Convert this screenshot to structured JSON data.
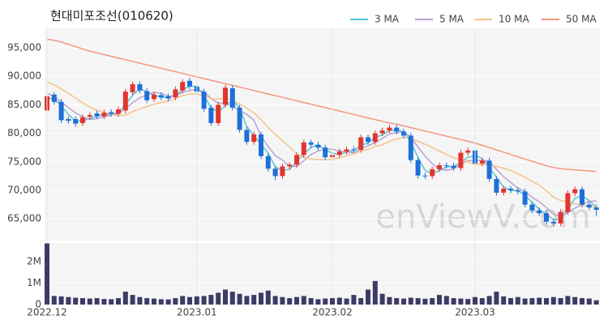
{
  "chart_data": [
    {
      "type": "candlestick",
      "title": "현대미포조선(010620)",
      "watermark": "enViewV.com",
      "up_color": "#e3342f",
      "down_color": "#1e6fd9",
      "legend": "top-right",
      "grid": true,
      "ylim": [
        61200,
        98400
      ],
      "yticks": [
        {
          "value": 65000,
          "label": "65,000"
        },
        {
          "value": 70000,
          "label": "70,000"
        },
        {
          "value": 75000,
          "label": "75,000"
        },
        {
          "value": 80000,
          "label": "80,000"
        },
        {
          "value": 85000,
          "label": "85,000"
        },
        {
          "value": 90000,
          "label": "90,000"
        },
        {
          "value": 95000,
          "label": "95,000"
        }
      ],
      "open": [
        84000,
        86800,
        85500,
        82500,
        82500,
        81800,
        82900,
        83500,
        83000,
        83700,
        83400,
        84000,
        87200,
        88600,
        87400,
        86000,
        86700,
        86500,
        86300,
        87500,
        89200,
        88200,
        87300,
        84500,
        81800,
        85000,
        87900,
        84500,
        80600,
        78500,
        79800,
        76000,
        73800,
        72500,
        74200,
        74500,
        76200,
        78400,
        78000,
        77500,
        75800,
        76200,
        76800,
        77200,
        77100,
        79300,
        78500,
        80000,
        80500,
        81000,
        80300,
        79600,
        75300,
        72600,
        72500,
        73700,
        74400,
        74300,
        73900,
        76600,
        77000,
        74700,
        75200,
        72000,
        69600,
        70300,
        70000,
        69800,
        67500,
        66500,
        66000,
        64500,
        64200,
        66200,
        69500,
        70200,
        67500,
        67000
      ],
      "high": [
        87000,
        87300,
        86000,
        83000,
        83000,
        83300,
        83700,
        84000,
        84100,
        84200,
        84700,
        87800,
        89100,
        89100,
        87900,
        87300,
        87200,
        87000,
        88200,
        89500,
        89700,
        88700,
        87800,
        85000,
        85500,
        88500,
        88400,
        85000,
        81100,
        80300,
        80300,
        76500,
        74300,
        74700,
        75000,
        76700,
        78900,
        78900,
        78500,
        78000,
        76700,
        77300,
        77700,
        77700,
        79800,
        79800,
        80500,
        81000,
        81500,
        81500,
        80800,
        80100,
        75800,
        73100,
        74200,
        74900,
        74900,
        74800,
        77100,
        77500,
        77500,
        75700,
        75700,
        72500,
        70800,
        70800,
        70500,
        70300,
        68000,
        67000,
        66500,
        65000,
        66700,
        70000,
        70700,
        70700,
        68000,
        67500
      ],
      "low": [
        83500,
        85000,
        81800,
        81700,
        81200,
        81300,
        82400,
        82500,
        82500,
        82900,
        82900,
        83500,
        86700,
        87000,
        85300,
        85500,
        85800,
        85600,
        85800,
        87000,
        87700,
        86800,
        83800,
        81300,
        81300,
        84500,
        84000,
        80100,
        78000,
        78000,
        75500,
        73300,
        71800,
        72000,
        73700,
        74000,
        75700,
        77500,
        77000,
        75300,
        75300,
        75700,
        76300,
        76600,
        76600,
        78000,
        78000,
        79500,
        80000,
        79800,
        79100,
        74800,
        72100,
        72000,
        72000,
        73200,
        73800,
        73400,
        73400,
        76100,
        74200,
        74200,
        71500,
        69100,
        69100,
        69500,
        69300,
        67000,
        66000,
        65500,
        64000,
        63700,
        63700,
        65700,
        69000,
        67000,
        66500,
        65500
      ],
      "close": [
        86500,
        85500,
        82300,
        82200,
        81700,
        82800,
        83200,
        83000,
        83600,
        83400,
        84200,
        87300,
        88600,
        87500,
        85800,
        86800,
        86300,
        86100,
        87700,
        89000,
        88200,
        87300,
        84300,
        81800,
        85000,
        88000,
        84500,
        80600,
        78500,
        79800,
        76000,
        73800,
        72500,
        74200,
        74500,
        76200,
        78400,
        78000,
        77500,
        75800,
        76200,
        76800,
        77200,
        77100,
        79300,
        78500,
        80000,
        80500,
        81000,
        80300,
        79600,
        75300,
        72600,
        72500,
        73700,
        74400,
        74300,
        73900,
        76600,
        77000,
        74700,
        75200,
        72000,
        69600,
        70300,
        70000,
        69800,
        67500,
        66500,
        66000,
        64500,
        64200,
        66200,
        69500,
        70200,
        67500,
        67000,
        66600
      ],
      "series": [
        {
          "name": "3 MA",
          "color": "#52c7d4",
          "values": [
            86000,
            86200,
            84800,
            83300,
            82100,
            82200,
            82600,
            83000,
            83300,
            83300,
            83700,
            85000,
            86700,
            87800,
            87300,
            86700,
            86300,
            86400,
            86700,
            87600,
            88300,
            88200,
            86600,
            84500,
            83700,
            84900,
            85800,
            84400,
            81200,
            79600,
            78100,
            76500,
            74100,
            73500,
            73700,
            75000,
            76400,
            77500,
            78000,
            77100,
            76500,
            76300,
            76700,
            77000,
            77900,
            78300,
            79300,
            79700,
            80500,
            80600,
            80300,
            78400,
            75800,
            73500,
            72900,
            73500,
            74100,
            74200,
            74900,
            75800,
            76100,
            75600,
            74000,
            72300,
            70600,
            70000,
            70000,
            69100,
            67900,
            66700,
            65700,
            64900,
            65000,
            66600,
            68600,
            69100,
            68200,
            67000
          ]
        },
        {
          "name": "5 MA",
          "color": "#b7a1d2",
          "values": [
            87000,
            86500,
            85500,
            84500,
            83600,
            82900,
            82400,
            82600,
            82900,
            83200,
            83500,
            84300,
            85400,
            86200,
            86700,
            87200,
            87000,
            86500,
            86500,
            87200,
            87500,
            87700,
            87300,
            86100,
            85300,
            85300,
            84700,
            84000,
            83300,
            82300,
            79500,
            77700,
            76100,
            75300,
            74200,
            74200,
            75200,
            76300,
            76900,
            77200,
            77200,
            76900,
            76700,
            76600,
            77300,
            77800,
            78400,
            79100,
            79900,
            80100,
            80300,
            79300,
            77600,
            76000,
            74700,
            73700,
            73500,
            73800,
            74600,
            75200,
            75200,
            75300,
            75100,
            73700,
            72400,
            71400,
            70400,
            69800,
            68800,
            68000,
            67000,
            65800,
            65500,
            66100,
            66900,
            67500,
            68100,
            68100
          ]
        },
        {
          "name": "10 MA",
          "color": "#f3c38b",
          "values": [
            89000,
            88500,
            87800,
            87000,
            86200,
            85300,
            84600,
            84000,
            83700,
            83300,
            83100,
            83200,
            83800,
            84300,
            84700,
            85100,
            85400,
            85700,
            86100,
            86600,
            86900,
            86900,
            86600,
            86100,
            86000,
            86200,
            85800,
            85200,
            84400,
            83600,
            82400,
            81000,
            79800,
            78700,
            77600,
            76400,
            75800,
            75500,
            75400,
            75400,
            75400,
            75700,
            76100,
            76400,
            76900,
            77200,
            77700,
            78000,
            78600,
            79000,
            79300,
            79100,
            78600,
            78100,
            77500,
            76900,
            76300,
            75700,
            75300,
            75000,
            74500,
            74500,
            74500,
            74200,
            73900,
            73500,
            72900,
            72300,
            71600,
            70900,
            69900,
            68800,
            68200,
            68000,
            67600,
            67400,
            67100,
            67100
          ]
        },
        {
          "name": "50 MA",
          "color": "#f4977f",
          "values": [
            96500,
            96300,
            96000,
            95600,
            95200,
            94800,
            94400,
            94100,
            93800,
            93500,
            93200,
            92900,
            92600,
            92300,
            92000,
            91700,
            91400,
            91100,
            90800,
            90500,
            90200,
            89900,
            89600,
            89300,
            89000,
            88700,
            88400,
            88100,
            87800,
            87500,
            87200,
            86900,
            86600,
            86300,
            86000,
            85700,
            85400,
            85100,
            84800,
            84500,
            84200,
            83900,
            83600,
            83300,
            83000,
            82700,
            82400,
            82100,
            81800,
            81600,
            81300,
            81000,
            80700,
            80400,
            80100,
            79800,
            79500,
            79200,
            78900,
            78600,
            78300,
            77900,
            77500,
            77100,
            76700,
            76300,
            75900,
            75500,
            75100,
            74700,
            74300,
            74000,
            73800,
            73700,
            73600,
            73500,
            73400,
            73300
          ]
        }
      ]
    },
    {
      "type": "bar",
      "color": "#3d3b66",
      "ylim": [
        0,
        2870000
      ],
      "yticks": [
        0,
        {
          "value": 1000000,
          "label": "1M"
        },
        {
          "value": 2000000,
          "label": "2M"
        }
      ],
      "categories": [
        "2022.12",
        null,
        null,
        null,
        null,
        null,
        null,
        null,
        null,
        null,
        null,
        null,
        null,
        null,
        null,
        null,
        null,
        null,
        null,
        null,
        null,
        "2023.01",
        null,
        null,
        null,
        null,
        null,
        null,
        null,
        null,
        null,
        null,
        null,
        null,
        null,
        null,
        null,
        null,
        null,
        null,
        "2023.02",
        null,
        null,
        null,
        null,
        null,
        null,
        null,
        null,
        null,
        null,
        null,
        null,
        null,
        null,
        null,
        null,
        null,
        null,
        null,
        "2023.03",
        null,
        null,
        null,
        null,
        null,
        null,
        null,
        null,
        null,
        null,
        null,
        null,
        null,
        null,
        null,
        null,
        null
      ],
      "values": [
        2850000,
        400000,
        380000,
        350000,
        320000,
        300000,
        280000,
        300000,
        260000,
        250000,
        300000,
        600000,
        450000,
        350000,
        300000,
        280000,
        250000,
        240000,
        300000,
        400000,
        350000,
        380000,
        400000,
        450000,
        550000,
        700000,
        600000,
        500000,
        400000,
        450000,
        550000,
        650000,
        400000,
        350000,
        300000,
        350000,
        400000,
        300000,
        250000,
        280000,
        300000,
        320000,
        280000,
        450000,
        300000,
        700000,
        1100000,
        500000,
        350000,
        300000,
        280000,
        320000,
        300000,
        270000,
        300000,
        450000,
        400000,
        300000,
        280000,
        260000,
        350000,
        300000,
        400000,
        600000,
        380000,
        300000,
        350000,
        280000,
        300000,
        320000,
        300000,
        350000,
        300000,
        400000,
        350000,
        300000,
        280000,
        200000
      ]
    }
  ]
}
